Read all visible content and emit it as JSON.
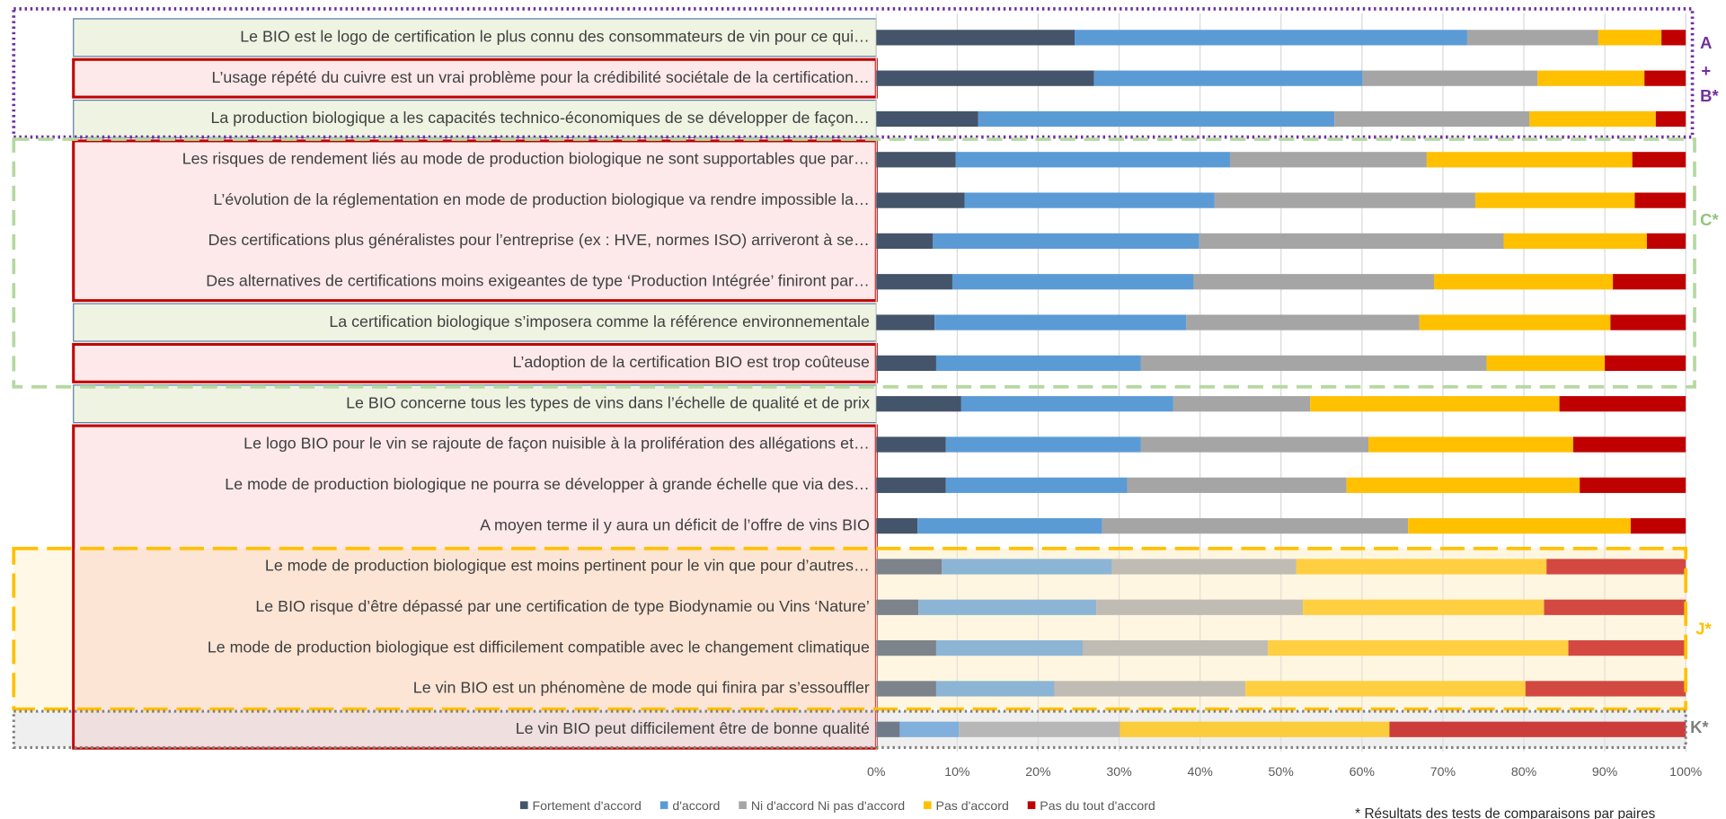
{
  "chart_data": {
    "type": "stacked_barh",
    "categories": [
      "Le BIO est le logo de certification le plus connu des consommateurs de vin pour ce qui…",
      "L’usage répété du cuivre est un vrai problème pour la crédibilité sociétale de la certification…",
      "La production biologique a les capacités technico-économiques de se développer de façon…",
      "Les risques de rendement liés au mode de production biologique ne sont supportables que par…",
      "L’évolution de la réglementation en mode de production biologique va rendre impossible la…",
      "Des certifications plus généralistes pour l’entreprise (ex : HVE, normes ISO) arriveront à se…",
      "Des alternatives de certifications moins exigeantes de type ‘Production Intégrée’ finiront par…",
      "La certification biologique s’imposera comme la référence environnementale",
      "L’adoption de la certification BIO est trop coûteuse",
      "Le BIO concerne tous les types de vins dans l’échelle de qualité et de prix",
      "Le logo BIO pour le vin se rajoute de façon nuisible à la prolifération des allégations et…",
      "Le mode de production biologique ne pourra se développer à grande échelle que via des…",
      "A moyen terme il y aura un déficit de l’offre de vins BIO",
      "Le mode de production biologique est moins pertinent pour le vin que pour d’autres…",
      "Le BIO risque d’être dépassé par une certification de type Biodynamie ou Vins ‘Nature’",
      "Le mode de production biologique est difficilement compatible avec le changement climatique",
      "Le vin BIO est un phénomène de mode qui finira par s’essouffler",
      "Le vin BIO peut difficilement  être de bonne qualité"
    ],
    "series": [
      {
        "name": "Fortement d'accord",
        "color": "#44546a",
        "values": [
          24.5,
          26.9,
          12.6,
          9.8,
          10.9,
          7.0,
          9.4,
          7.2,
          7.4,
          10.5,
          8.6,
          8.6,
          5.1,
          8.1,
          5.2,
          7.4,
          7.4,
          2.9
        ]
      },
      {
        "name": "d'accord",
        "color": "#5b9bd5",
        "values": [
          48.5,
          33.2,
          44.0,
          33.9,
          30.9,
          32.9,
          29.8,
          31.1,
          25.3,
          26.2,
          24.1,
          22.4,
          22.8,
          21.0,
          22.0,
          18.1,
          14.6,
          7.3
        ]
      },
      {
        "name": "Ni d'accord Ni pas d'accord",
        "color": "#a5a5a5",
        "values": [
          16.2,
          21.6,
          24.1,
          24.3,
          32.2,
          37.6,
          29.7,
          28.8,
          42.7,
          16.9,
          28.1,
          27.1,
          37.8,
          22.8,
          25.5,
          22.9,
          23.6,
          19.9
        ]
      },
      {
        "name": "Pas d'accord",
        "color": "#ffc000",
        "values": [
          7.8,
          13.2,
          15.6,
          25.4,
          19.7,
          17.7,
          22.1,
          23.6,
          14.6,
          30.8,
          25.3,
          28.8,
          27.5,
          30.9,
          29.8,
          37.1,
          34.6,
          33.3
        ]
      },
      {
        "name": "Pas du tout d'accord",
        "color": "#c00000",
        "values": [
          3.0,
          5.1,
          3.7,
          6.6,
          6.3,
          4.8,
          9.0,
          9.3,
          10.0,
          15.6,
          13.9,
          13.1,
          6.8,
          17.2,
          17.5,
          14.5,
          19.8,
          36.6
        ]
      }
    ],
    "xlim": [
      0,
      100
    ],
    "xticks": [
      {
        "value": 0,
        "label": "0%"
      },
      {
        "value": 10,
        "label": "10%"
      },
      {
        "value": 20,
        "label": "20%"
      },
      {
        "value": 30,
        "label": "30%"
      },
      {
        "value": 40,
        "label": "40%"
      },
      {
        "value": 50,
        "label": "50%"
      },
      {
        "value": 60,
        "label": "60%"
      },
      {
        "value": 70,
        "label": "70%"
      },
      {
        "value": 80,
        "label": "80%"
      },
      {
        "value": 90,
        "label": "90%"
      },
      {
        "value": 100,
        "label": "100%"
      }
    ],
    "grid": true,
    "legend": "bottom",
    "annotations": [
      "A",
      "+",
      "B*",
      "C*",
      "J*",
      "K*",
      "* Résultats des tests de comparaisons par paires"
    ]
  }
}
